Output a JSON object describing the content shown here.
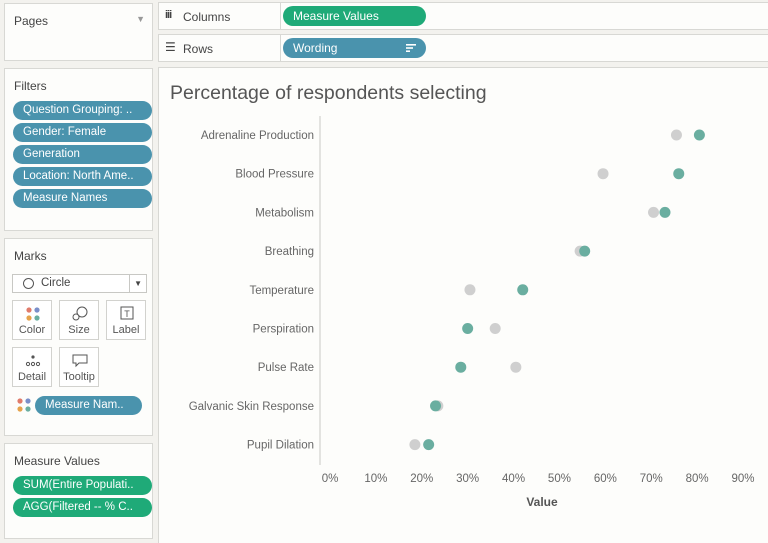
{
  "sidebar": {
    "pages": {
      "title": "Pages"
    },
    "filters": {
      "title": "Filters",
      "items": [
        "Question Grouping: ..",
        "Gender: Female",
        "Generation",
        "Location: North Ame..",
        "Measure Names"
      ]
    },
    "marks": {
      "title": "Marks",
      "type": "Circle",
      "buttons": {
        "color": "Color",
        "size": "Size",
        "label": "Label",
        "detail": "Detail",
        "tooltip": "Tooltip"
      },
      "color_pill": "Measure Nam.."
    },
    "measure_values": {
      "title": "Measure Values",
      "items": [
        "SUM(Entire Populati..",
        "AGG(Filtered -- % C.."
      ]
    }
  },
  "shelves": {
    "columns_label": "Columns",
    "columns_pill": "Measure Values",
    "rows_label": "Rows",
    "rows_pill": "Wording"
  },
  "colors": {
    "accent_blue": "#4a93ad",
    "accent_green": "#1faa78",
    "series_entire": "#cfcfcf",
    "series_filtered": "#6aaea0"
  },
  "chart_data": {
    "type": "scatter",
    "title": "Percentage of respondents selecting",
    "xlabel": "Value",
    "ylabel": "",
    "xlim": [
      0,
      90
    ],
    "x_ticks": [
      "0%",
      "10%",
      "20%",
      "30%",
      "40%",
      "50%",
      "60%",
      "70%",
      "80%",
      "90%"
    ],
    "categories": [
      "Adrenaline Production",
      "Blood Pressure",
      "Metabolism",
      "Breathing",
      "Temperature",
      "Perspiration",
      "Pulse Rate",
      "Galvanic Skin Response",
      "Pupil Dilation"
    ],
    "series": [
      {
        "values": [
          75.5,
          59.5,
          70.5,
          54.5,
          30.5,
          36,
          40.5,
          23.5,
          18.5
        ],
        "color": "#cfcfcf"
      },
      {
        "values": [
          80.5,
          76,
          73,
          55.5,
          42,
          30,
          28.5,
          23,
          21.5
        ],
        "color": "#6aaea0"
      }
    ]
  }
}
